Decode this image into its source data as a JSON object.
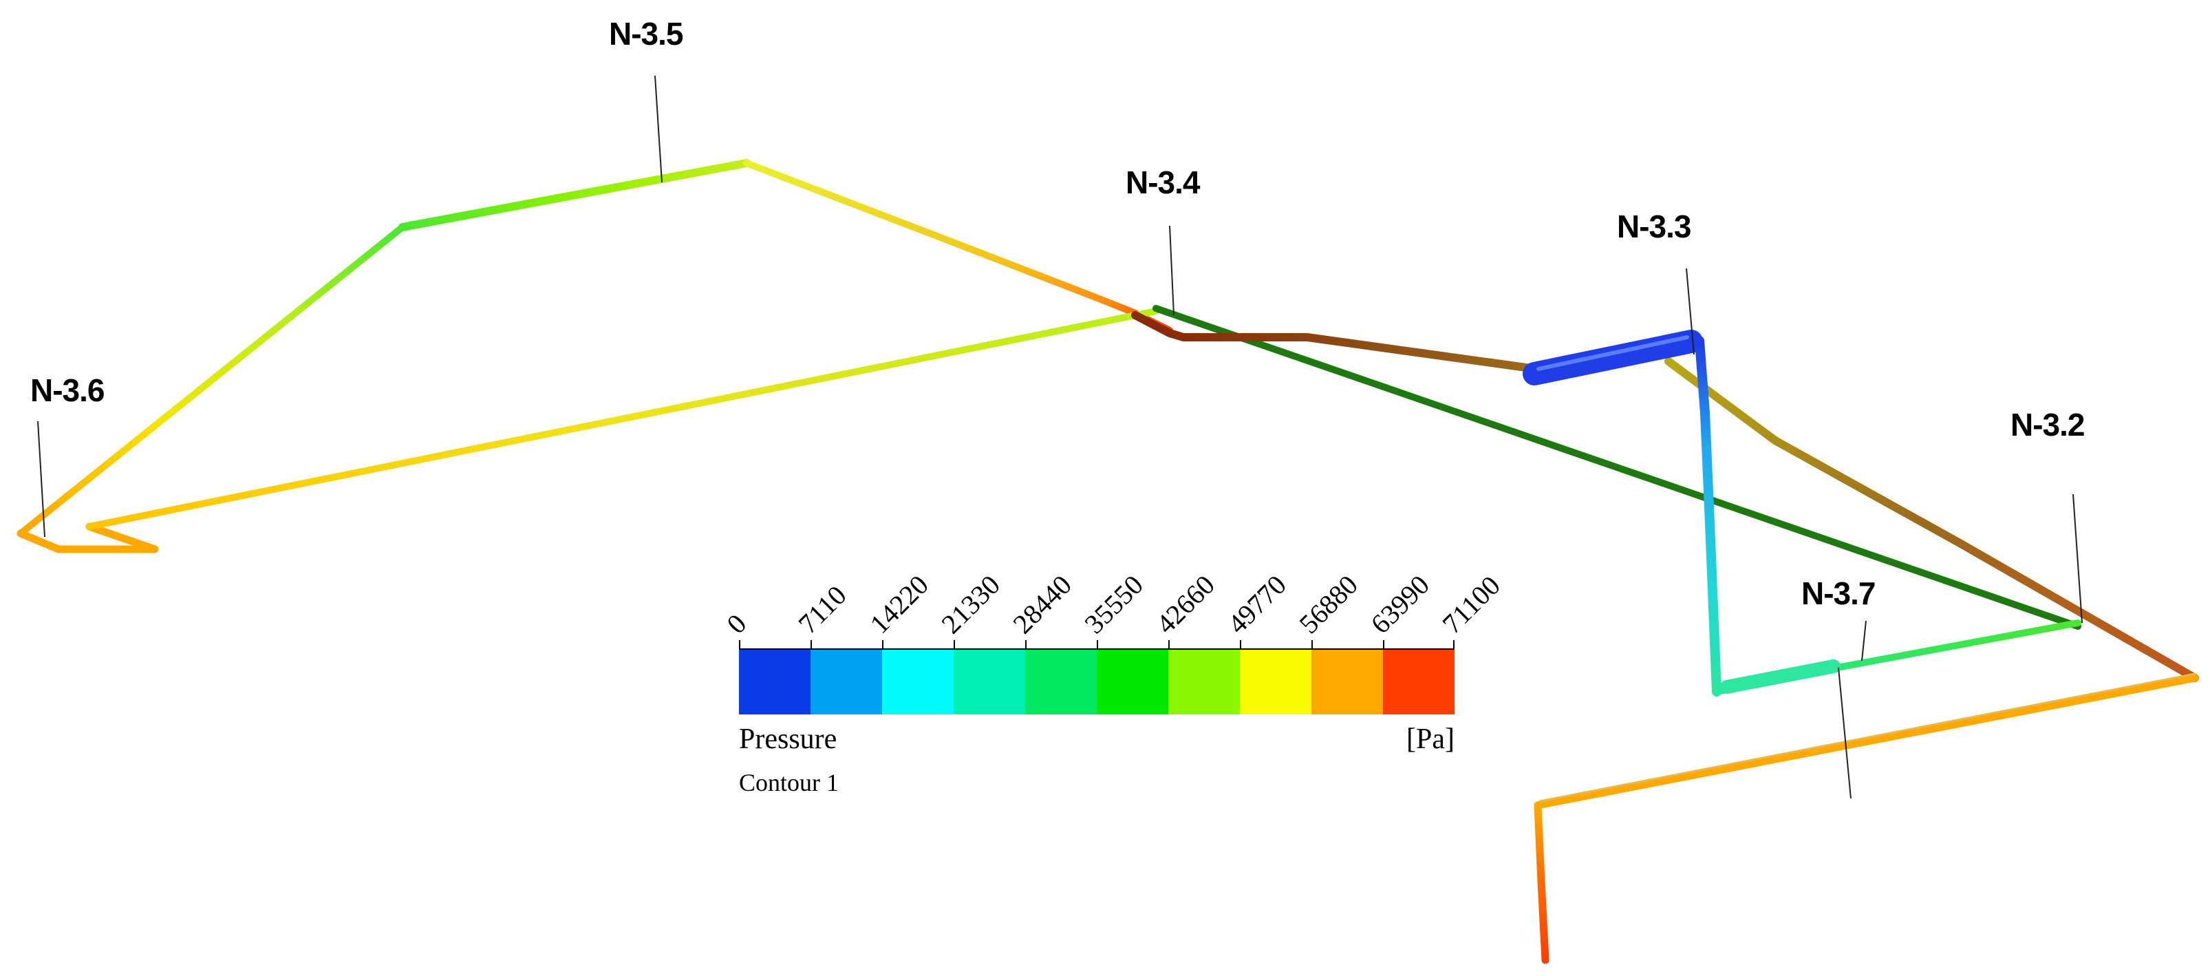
{
  "nodes": {
    "n35": "N-3.5",
    "n34": "N-3.4",
    "n33": "N-3.3",
    "n36": "N-3.6",
    "n32": "N-3.2",
    "n37": "N-3.7"
  },
  "legend": {
    "title": "Pressure",
    "unit": "[Pa]",
    "subtitle": "Contour 1",
    "ticks": [
      "0",
      "7110",
      "14220",
      "21330",
      "28440",
      "35550",
      "42660",
      "49770",
      "56880",
      "63990",
      "71100"
    ],
    "colors": [
      "#0a3de8",
      "#00a2f2",
      "#00fbfb",
      "#00f0b4",
      "#00e860",
      "#00e800",
      "#8cf500",
      "#fbfb00",
      "#ffa800",
      "#ff3d00"
    ]
  },
  "pipe_colors": {
    "red": "#ff3d00",
    "dark_red": "#8a2a08",
    "orange": "#ffa800",
    "yellow": "#f5e600",
    "yellow_green": "#b9ee1a",
    "green": "#4ae632",
    "dark_green": "#1e7a10",
    "blue": "#1f3ee8",
    "light_blue": "#20a8f0",
    "cyan_green": "#29e6a0",
    "brown": "#9b6a1c"
  }
}
